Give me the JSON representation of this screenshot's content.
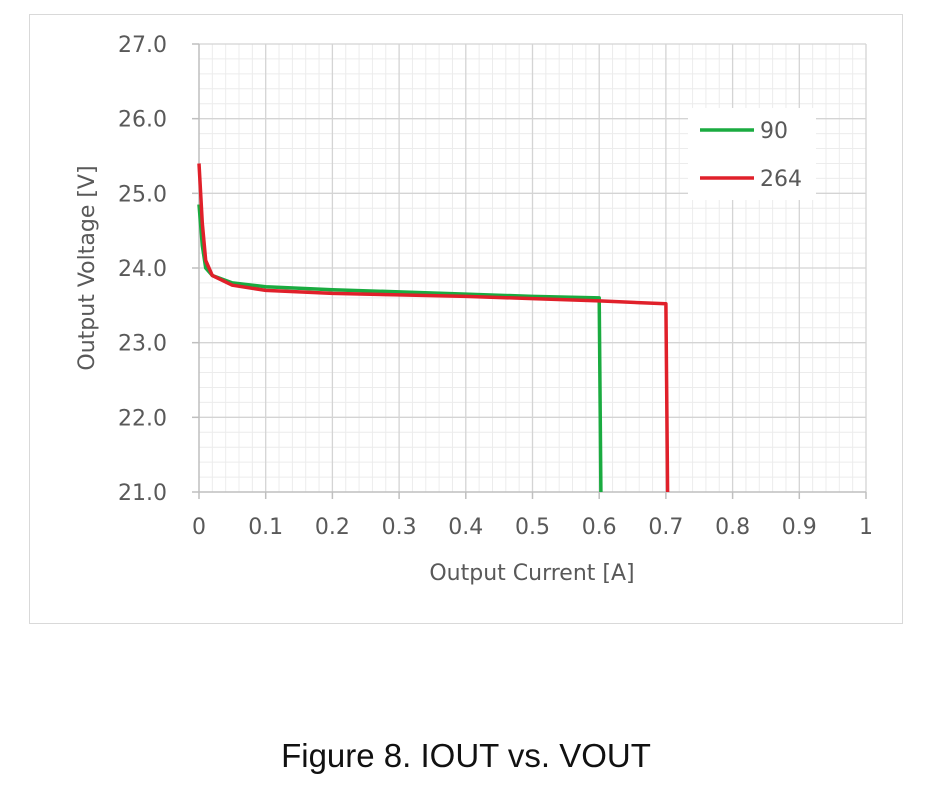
{
  "caption": "Figure 8. IOUT vs. VOUT",
  "chart_data": {
    "type": "line",
    "xlabel": "Output Current [A]",
    "ylabel": "Output Voltage [V]",
    "xlim": [
      0,
      1
    ],
    "ylim": [
      21.0,
      27.0
    ],
    "x_ticks": [
      0,
      0.1,
      0.2,
      0.3,
      0.4,
      0.5,
      0.6,
      0.7,
      0.8,
      0.9,
      1
    ],
    "x_tick_labels": [
      "0",
      "0.1",
      "0.2",
      "0.3",
      "0.4",
      "0.5",
      "0.6",
      "0.7",
      "0.8",
      "0.9",
      "1"
    ],
    "y_ticks": [
      21.0,
      22.0,
      23.0,
      24.0,
      25.0,
      26.0,
      27.0
    ],
    "y_tick_labels": [
      "21.0",
      "22.0",
      "23.0",
      "24.0",
      "25.0",
      "26.0",
      "27.0"
    ],
    "grid": true,
    "legend_position": "top-right",
    "series": [
      {
        "name": "90",
        "color": "#1aab40",
        "x": [
          0,
          0.005,
          0.01,
          0.02,
          0.05,
          0.1,
          0.2,
          0.3,
          0.4,
          0.5,
          0.6,
          0.6025
        ],
        "y": [
          24.85,
          24.3,
          24.0,
          23.9,
          23.8,
          23.75,
          23.71,
          23.68,
          23.65,
          23.62,
          23.6,
          21.0
        ]
      },
      {
        "name": "264",
        "color": "#e0202a",
        "x": [
          0,
          0.005,
          0.01,
          0.02,
          0.05,
          0.1,
          0.2,
          0.3,
          0.4,
          0.5,
          0.6,
          0.7,
          0.7025
        ],
        "y": [
          25.4,
          24.6,
          24.1,
          23.9,
          23.77,
          23.7,
          23.66,
          23.64,
          23.62,
          23.59,
          23.56,
          23.52,
          21.0
        ]
      }
    ]
  }
}
